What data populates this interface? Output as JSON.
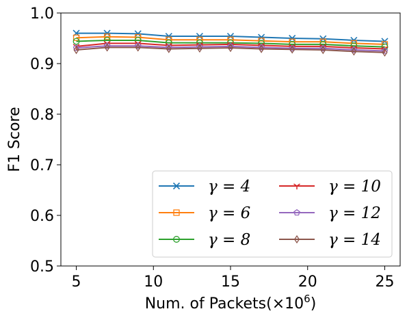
{
  "chart_data": {
    "type": "line",
    "xlabel": "Num. of Packets(×10",
    "xlabel_exponent": "6",
    "xlabel_close": ")",
    "ylabel": "F1 Score",
    "xlim": [
      4,
      26
    ],
    "ylim": [
      0.5,
      1.0
    ],
    "xticks": [
      5,
      10,
      15,
      20,
      25
    ],
    "xtick_labels": [
      "5",
      "10",
      "15",
      "20",
      "25"
    ],
    "yticks": [
      0.5,
      0.6,
      0.7,
      0.8,
      0.9,
      1.0
    ],
    "ytick_labels": [
      "0.5",
      "0.6",
      "0.7",
      "0.8",
      "0.9",
      "1.0"
    ],
    "x": [
      5,
      7,
      9,
      11,
      13,
      15,
      17,
      19,
      21,
      23,
      25
    ],
    "legend_position": "lower-right",
    "legend_columns": 2,
    "series": [
      {
        "name": "γ = 4",
        "color": "#1f77b4",
        "marker": "x",
        "values": [
          0.96,
          0.96,
          0.959,
          0.954,
          0.954,
          0.954,
          0.952,
          0.95,
          0.949,
          0.946,
          0.944
        ]
      },
      {
        "name": "γ = 6",
        "color": "#ff7f0e",
        "marker": "square",
        "values": [
          0.951,
          0.953,
          0.952,
          0.947,
          0.947,
          0.947,
          0.945,
          0.943,
          0.943,
          0.94,
          0.938
        ]
      },
      {
        "name": "γ = 8",
        "color": "#2ca02c",
        "marker": "circle",
        "values": [
          0.944,
          0.946,
          0.946,
          0.941,
          0.941,
          0.941,
          0.94,
          0.938,
          0.938,
          0.935,
          0.933
        ]
      },
      {
        "name": "γ = 10",
        "color": "#d62728",
        "marker": "tri_down",
        "values": [
          0.934,
          0.94,
          0.94,
          0.936,
          0.937,
          0.938,
          0.936,
          0.934,
          0.934,
          0.931,
          0.929
        ]
      },
      {
        "name": "γ = 12",
        "color": "#9467bd",
        "marker": "pentagon",
        "values": [
          0.931,
          0.935,
          0.935,
          0.932,
          0.933,
          0.934,
          0.932,
          0.93,
          0.93,
          0.927,
          0.925
        ]
      },
      {
        "name": "γ = 14",
        "color": "#8c564b",
        "marker": "thin_diamond",
        "values": [
          0.927,
          0.932,
          0.932,
          0.929,
          0.93,
          0.931,
          0.929,
          0.928,
          0.927,
          0.924,
          0.922
        ]
      }
    ]
  }
}
